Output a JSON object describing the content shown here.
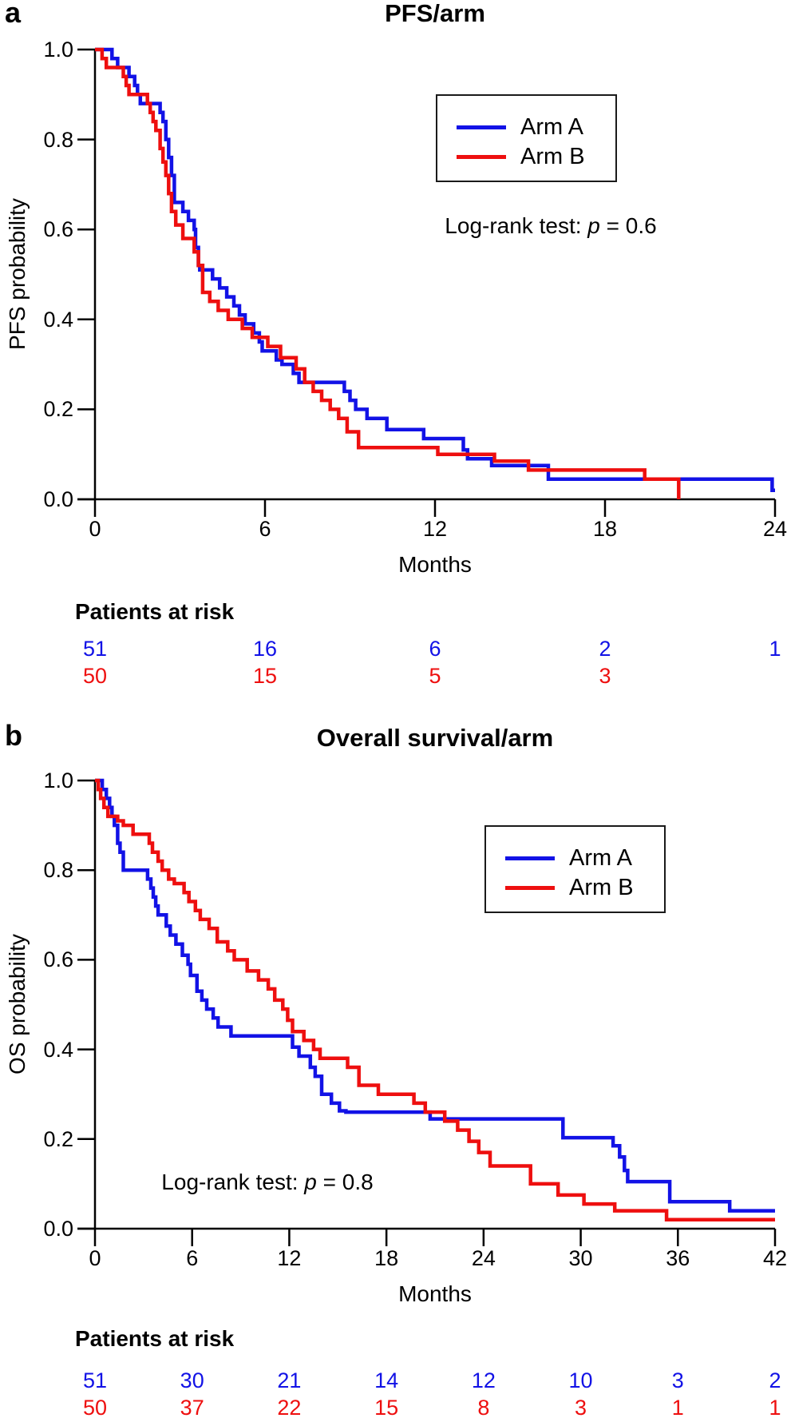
{
  "figure": {
    "background": "#ffffff",
    "axis_color": "#000000",
    "arm_a_color": "#1212e6",
    "arm_b_color": "#ee0f0f"
  },
  "chart_data": [
    {
      "type": "line",
      "subtype": "kaplan-meier-step",
      "panel_label": "a",
      "title": "PFS/arm",
      "xlabel": "Months",
      "ylabel": "PFS probability",
      "xlim": [
        0,
        24
      ],
      "ylim": [
        0,
        1
      ],
      "xticks": [
        0,
        6,
        12,
        18,
        24
      ],
      "yticks": {
        "values": [
          0,
          0.2,
          0.4,
          0.6,
          0.8,
          1.0
        ],
        "labels": [
          "0.0",
          "0.2",
          "0.4",
          "0.6",
          "0.8",
          "1.0"
        ]
      },
      "grid": false,
      "legend_position": "top-right",
      "annotation": {
        "prefix": "Log-rank test: ",
        "symbol": "p",
        "suffix": " = 0.6"
      },
      "series": [
        {
          "name": "Arm A",
          "color": "#1212e6",
          "steps": [
            [
              0,
              1
            ],
            [
              0.6,
              0.98
            ],
            [
              0.8,
              0.96
            ],
            [
              1.2,
              0.94
            ],
            [
              1.4,
              0.92
            ],
            [
              1.5,
              0.9
            ],
            [
              1.6,
              0.88
            ],
            [
              2.3,
              0.86
            ],
            [
              2.4,
              0.84
            ],
            [
              2.5,
              0.8
            ],
            [
              2.6,
              0.76
            ],
            [
              2.7,
              0.72
            ],
            [
              2.8,
              0.66
            ],
            [
              3.1,
              0.64
            ],
            [
              3.3,
              0.62
            ],
            [
              3.5,
              0.6
            ],
            [
              3.55,
              0.56
            ],
            [
              3.65,
              0.52
            ],
            [
              3.7,
              0.51
            ],
            [
              4.15,
              0.49
            ],
            [
              4.4,
              0.47
            ],
            [
              4.65,
              0.45
            ],
            [
              4.9,
              0.43
            ],
            [
              5.1,
              0.41
            ],
            [
              5.3,
              0.39
            ],
            [
              5.6,
              0.37
            ],
            [
              5.8,
              0.35
            ],
            [
              5.9,
              0.33
            ],
            [
              6.4,
              0.31
            ],
            [
              6.6,
              0.3
            ],
            [
              7.0,
              0.28
            ],
            [
              7.2,
              0.26
            ],
            [
              8.8,
              0.24
            ],
            [
              9.0,
              0.22
            ],
            [
              9.2,
              0.2
            ],
            [
              9.6,
              0.18
            ],
            [
              10.3,
              0.155
            ],
            [
              11.6,
              0.135
            ],
            [
              13.0,
              0.11
            ],
            [
              13.15,
              0.09
            ],
            [
              14.0,
              0.075
            ],
            [
              16.0,
              0.045
            ],
            [
              23.9,
              0.02
            ],
            [
              24,
              0.02
            ]
          ]
        },
        {
          "name": "Arm B",
          "color": "#ee0f0f",
          "steps": [
            [
              0,
              1
            ],
            [
              0.25,
              0.98
            ],
            [
              0.4,
              0.96
            ],
            [
              1.0,
              0.94
            ],
            [
              1.1,
              0.92
            ],
            [
              1.2,
              0.9
            ],
            [
              1.85,
              0.88
            ],
            [
              1.95,
              0.86
            ],
            [
              2.05,
              0.84
            ],
            [
              2.15,
              0.82
            ],
            [
              2.3,
              0.78
            ],
            [
              2.4,
              0.75
            ],
            [
              2.5,
              0.72
            ],
            [
              2.6,
              0.68
            ],
            [
              2.7,
              0.64
            ],
            [
              2.85,
              0.61
            ],
            [
              3.1,
              0.58
            ],
            [
              3.5,
              0.55
            ],
            [
              3.65,
              0.52
            ],
            [
              3.8,
              0.46
            ],
            [
              4.05,
              0.44
            ],
            [
              4.35,
              0.42
            ],
            [
              4.7,
              0.4
            ],
            [
              5.2,
              0.38
            ],
            [
              5.55,
              0.36
            ],
            [
              6.1,
              0.34
            ],
            [
              6.55,
              0.315
            ],
            [
              7.1,
              0.29
            ],
            [
              7.4,
              0.26
            ],
            [
              7.7,
              0.24
            ],
            [
              8.0,
              0.22
            ],
            [
              8.3,
              0.2
            ],
            [
              8.6,
              0.18
            ],
            [
              8.9,
              0.15
            ],
            [
              9.3,
              0.115
            ],
            [
              12.1,
              0.1
            ],
            [
              14.1,
              0.085
            ],
            [
              15.3,
              0.065
            ],
            [
              19.4,
              0.045
            ],
            [
              20.6,
              0
            ]
          ]
        }
      ],
      "risk_table": {
        "header": "Patients at risk",
        "months": [
          0,
          6,
          12,
          18,
          24
        ],
        "rows": [
          {
            "name": "Arm A",
            "color": "#1212e6",
            "values": [
              "51",
              "16",
              "6",
              "2",
              "1"
            ]
          },
          {
            "name": "Arm B",
            "color": "#ee0f0f",
            "values": [
              "50",
              "15",
              "5",
              "3"
            ]
          }
        ]
      }
    },
    {
      "type": "line",
      "subtype": "kaplan-meier-step",
      "panel_label": "b",
      "title": "Overall survival/arm",
      "xlabel": "Months",
      "ylabel": "OS probability",
      "xlim": [
        0,
        42
      ],
      "ylim": [
        0,
        1
      ],
      "xticks": [
        0,
        6,
        12,
        18,
        24,
        30,
        36,
        42
      ],
      "yticks": {
        "values": [
          0,
          0.2,
          0.4,
          0.6,
          0.8,
          1.0
        ],
        "labels": [
          "0.0",
          "0.2",
          "0.4",
          "0.6",
          "0.8",
          "1.0"
        ]
      },
      "grid": false,
      "legend_position": "top-right",
      "annotation": {
        "prefix": "Log-rank test: ",
        "symbol": "p",
        "suffix": " = 0.8"
      },
      "series": [
        {
          "name": "Arm A",
          "color": "#1212e6",
          "steps": [
            [
              0,
              1
            ],
            [
              0.45,
              0.98
            ],
            [
              0.7,
              0.96
            ],
            [
              0.9,
              0.94
            ],
            [
              1.05,
              0.92
            ],
            [
              1.2,
              0.9
            ],
            [
              1.4,
              0.86
            ],
            [
              1.55,
              0.84
            ],
            [
              1.75,
              0.8
            ],
            [
              3.25,
              0.78
            ],
            [
              3.45,
              0.76
            ],
            [
              3.6,
              0.74
            ],
            [
              3.75,
              0.72
            ],
            [
              3.9,
              0.7
            ],
            [
              4.4,
              0.675
            ],
            [
              4.65,
              0.655
            ],
            [
              5.0,
              0.635
            ],
            [
              5.4,
              0.61
            ],
            [
              5.75,
              0.59
            ],
            [
              5.9,
              0.565
            ],
            [
              6.3,
              0.53
            ],
            [
              6.6,
              0.51
            ],
            [
              6.9,
              0.49
            ],
            [
              7.3,
              0.47
            ],
            [
              7.6,
              0.45
            ],
            [
              8.4,
              0.43
            ],
            [
              12.2,
              0.405
            ],
            [
              12.6,
              0.385
            ],
            [
              13.3,
              0.36
            ],
            [
              13.6,
              0.34
            ],
            [
              14.0,
              0.3
            ],
            [
              14.6,
              0.28
            ],
            [
              15.1,
              0.263
            ],
            [
              15.5,
              0.26
            ],
            [
              20.7,
              0.245
            ],
            [
              28.9,
              0.203
            ],
            [
              32.0,
              0.185
            ],
            [
              32.4,
              0.16
            ],
            [
              32.7,
              0.13
            ],
            [
              32.9,
              0.105
            ],
            [
              35.5,
              0.06
            ],
            [
              39.2,
              0.04
            ],
            [
              42,
              0.04
            ]
          ]
        },
        {
          "name": "Arm B",
          "color": "#ee0f0f",
          "steps": [
            [
              0,
              1
            ],
            [
              0.2,
              0.98
            ],
            [
              0.35,
              0.96
            ],
            [
              0.55,
              0.94
            ],
            [
              0.8,
              0.92
            ],
            [
              1.4,
              0.91
            ],
            [
              1.75,
              0.9
            ],
            [
              2.35,
              0.88
            ],
            [
              3.35,
              0.86
            ],
            [
              3.55,
              0.84
            ],
            [
              3.9,
              0.82
            ],
            [
              4.15,
              0.8
            ],
            [
              4.55,
              0.78
            ],
            [
              4.9,
              0.77
            ],
            [
              5.5,
              0.75
            ],
            [
              5.8,
              0.73
            ],
            [
              6.2,
              0.71
            ],
            [
              6.5,
              0.69
            ],
            [
              7.05,
              0.67
            ],
            [
              7.55,
              0.64
            ],
            [
              8.2,
              0.62
            ],
            [
              8.6,
              0.6
            ],
            [
              9.4,
              0.575
            ],
            [
              10.1,
              0.555
            ],
            [
              10.7,
              0.535
            ],
            [
              11.1,
              0.51
            ],
            [
              11.6,
              0.49
            ],
            [
              11.9,
              0.465
            ],
            [
              12.2,
              0.44
            ],
            [
              12.9,
              0.42
            ],
            [
              13.5,
              0.4
            ],
            [
              13.9,
              0.38
            ],
            [
              15.6,
              0.36
            ],
            [
              16.3,
              0.32
            ],
            [
              17.5,
              0.3
            ],
            [
              19.7,
              0.28
            ],
            [
              20.4,
              0.26
            ],
            [
              21.6,
              0.24
            ],
            [
              22.4,
              0.22
            ],
            [
              23.1,
              0.195
            ],
            [
              23.7,
              0.17
            ],
            [
              24.4,
              0.14
            ],
            [
              26.9,
              0.1
            ],
            [
              28.6,
              0.075
            ],
            [
              30.2,
              0.055
            ],
            [
              32.1,
              0.04
            ],
            [
              35.3,
              0.02
            ],
            [
              42,
              0.02
            ]
          ]
        }
      ],
      "risk_table": {
        "header": "Patients at risk",
        "months": [
          0,
          6,
          12,
          18,
          24,
          30,
          36,
          42
        ],
        "rows": [
          {
            "name": "Arm A",
            "color": "#1212e6",
            "values": [
              "51",
              "30",
              "21",
              "14",
              "12",
              "10",
              "3",
              "2"
            ]
          },
          {
            "name": "Arm B",
            "color": "#ee0f0f",
            "values": [
              "50",
              "37",
              "22",
              "15",
              "8",
              "3",
              "1",
              "1"
            ]
          }
        ]
      }
    }
  ]
}
